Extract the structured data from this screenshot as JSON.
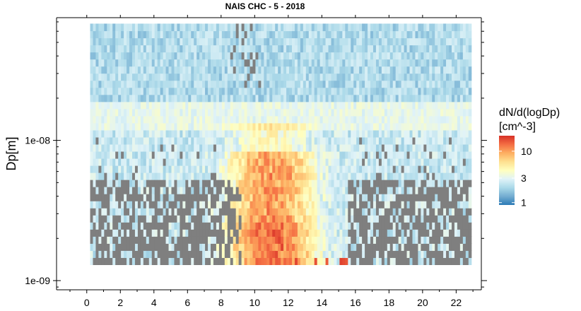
{
  "chart_data": {
    "type": "heatmap",
    "title": "NAIS CHC - 5 - 2018",
    "xlabel": "",
    "ylabel": "Dp[m]",
    "x_ticks": [
      "0",
      "2",
      "4",
      "6",
      "8",
      "10",
      "12",
      "14",
      "16",
      "18",
      "20",
      "22"
    ],
    "x_tick_values": [
      0,
      2,
      4,
      6,
      8,
      10,
      12,
      14,
      16,
      18,
      20,
      22
    ],
    "xlim": [
      -1.8,
      23.5
    ],
    "y_ticks": [
      "1e-09",
      "1e-08"
    ],
    "y_tick_values": [
      1e-09,
      1e-08
    ],
    "yscale": "log",
    "ylim": [
      8.6e-10,
      7.5e-08
    ],
    "x_range": [
      0.2,
      22.9
    ],
    "y_range": [
      1.3e-09,
      6.8e-08
    ],
    "missing_color": "#7f7f7f",
    "grid": false,
    "colorbar": {
      "title_line1": "dN/d(logDp)",
      "title_line2": "[cm^-3]",
      "scale": "log",
      "ticks": [
        "10",
        "3",
        "1"
      ],
      "tick_values": [
        10,
        3,
        1
      ],
      "range": [
        0.9,
        20
      ],
      "colors": [
        "#2c7bb6",
        "#74add1",
        "#abd9e9",
        "#e0f3f8",
        "#ffffbf",
        "#fee090",
        "#fdae61",
        "#f46d43",
        "#d73027"
      ]
    },
    "features": [
      {
        "description": "missing values (grey) across small sizes outside daytime",
        "x_range": [
          0.2,
          22.9
        ],
        "dp_range": [
          1.3e-09,
          5.5e-09
        ]
      },
      {
        "description": "new particle formation burst, high concentrations",
        "x_range": [
          8.5,
          15.5
        ],
        "dp_range": [
          1.3e-09,
          7e-09
        ],
        "peak": 12
      }
    ]
  }
}
